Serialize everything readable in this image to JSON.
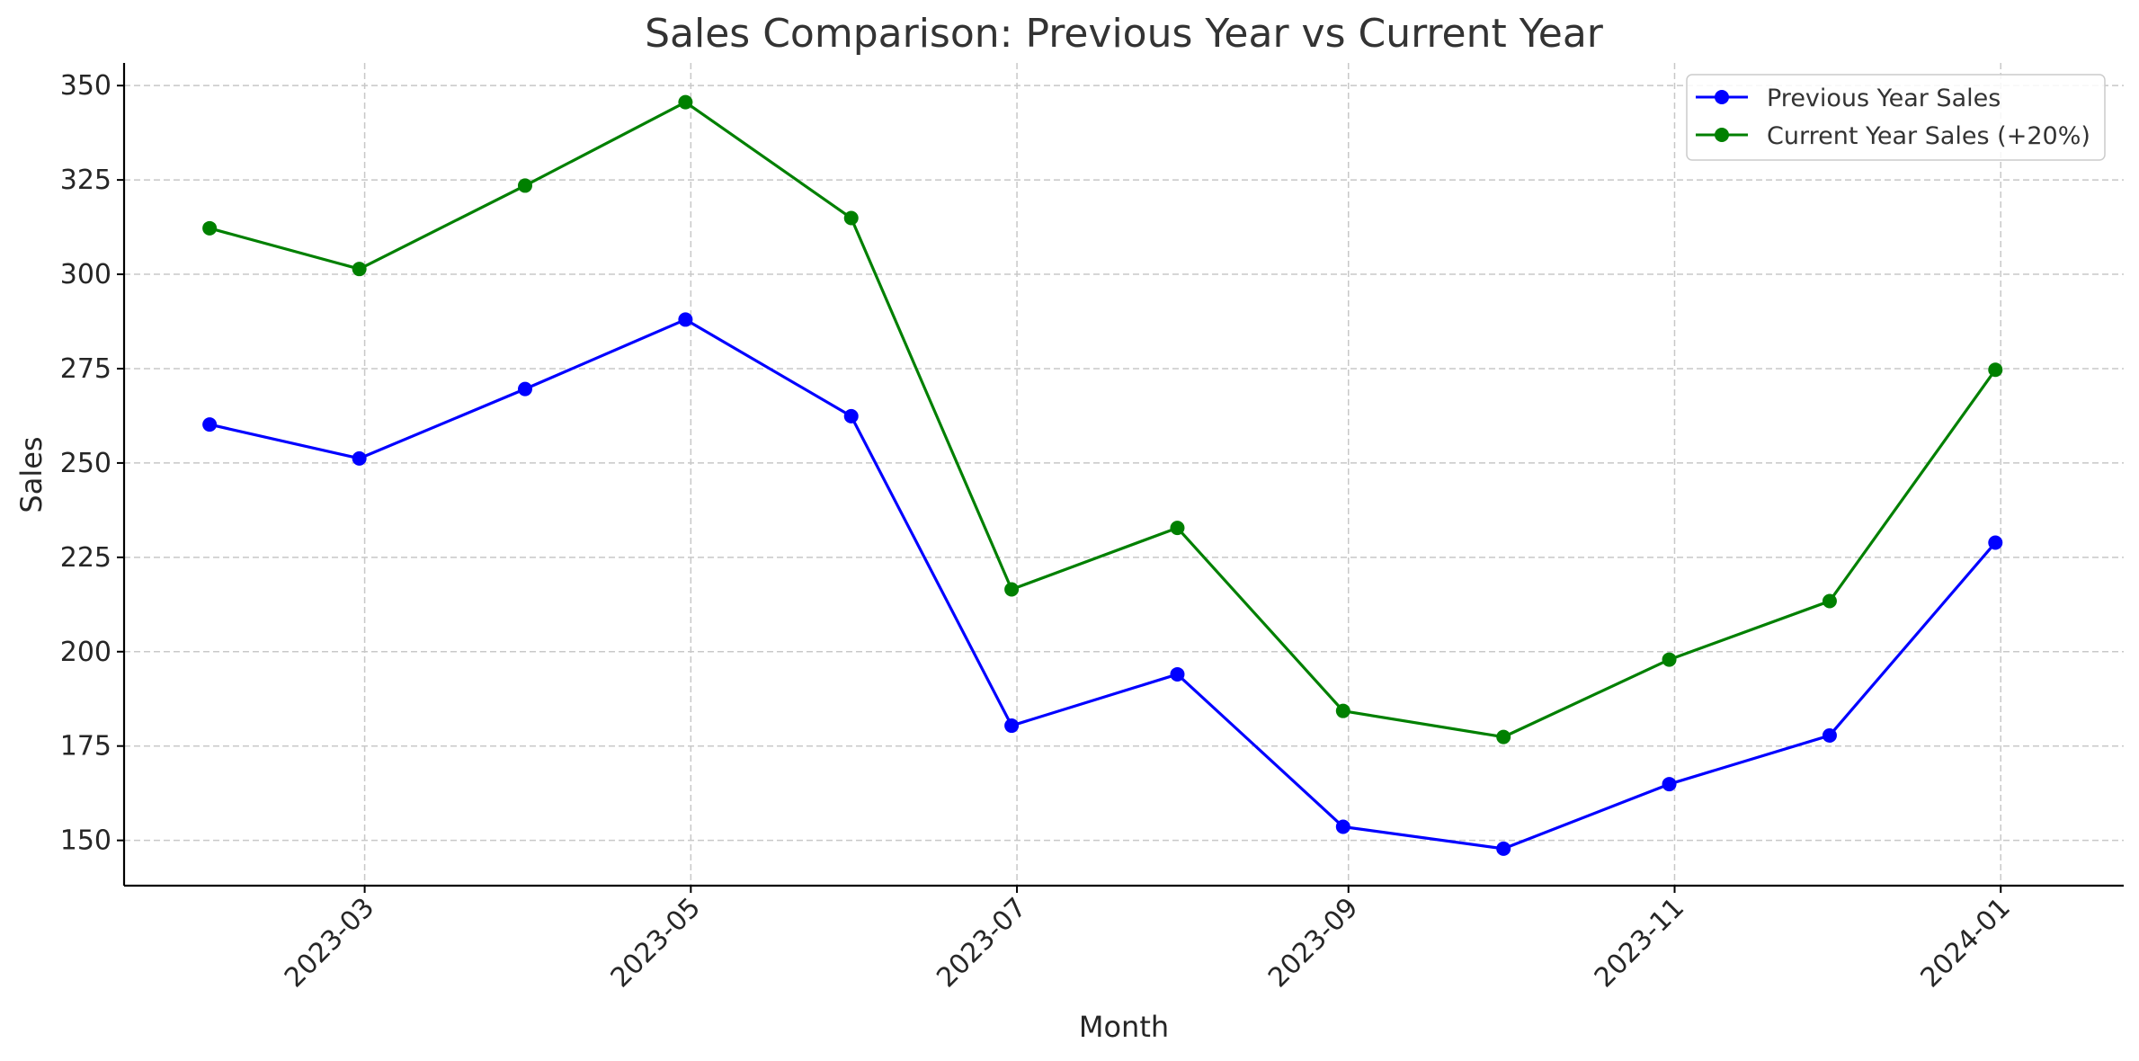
{
  "chart_data": {
    "type": "line",
    "title": "Sales Comparison: Previous Year vs Current Year",
    "xlabel": "Month",
    "ylabel": "Sales",
    "x": [
      "2023-01-31",
      "2023-02-28",
      "2023-03-31",
      "2023-04-30",
      "2023-05-31",
      "2023-06-30",
      "2023-07-31",
      "2023-08-31",
      "2023-09-30",
      "2023-10-31",
      "2023-11-30",
      "2023-12-31"
    ],
    "x_ticks": [
      "2023-03",
      "2023-05",
      "2023-07",
      "2023-09",
      "2023-11",
      "2024-01"
    ],
    "x_tick_dates": [
      "2023-03-01",
      "2023-05-01",
      "2023-07-01",
      "2023-09-01",
      "2023-11-01",
      "2024-01-01"
    ],
    "xlim": [
      "2023-01-15",
      "2024-01-24"
    ],
    "y_ticks": [
      150,
      175,
      200,
      225,
      250,
      275,
      300,
      325,
      350
    ],
    "ylim": [
      138,
      356
    ],
    "grid": true,
    "legend_position": "top-right",
    "series": [
      {
        "name": "Previous Year Sales",
        "color": "#0000ff",
        "marker": "circle",
        "values": [
          260.2,
          251.2,
          269.6,
          288.0,
          262.4,
          180.4,
          194.0,
          153.6,
          147.8,
          164.9,
          177.8,
          228.9
        ]
      },
      {
        "name": "Current Year Sales (+20%)",
        "color": "#008000",
        "marker": "circle",
        "values": [
          312.2,
          301.4,
          323.5,
          345.6,
          314.9,
          216.5,
          232.8,
          184.3,
          177.4,
          197.9,
          213.4,
          274.7
        ]
      }
    ]
  }
}
